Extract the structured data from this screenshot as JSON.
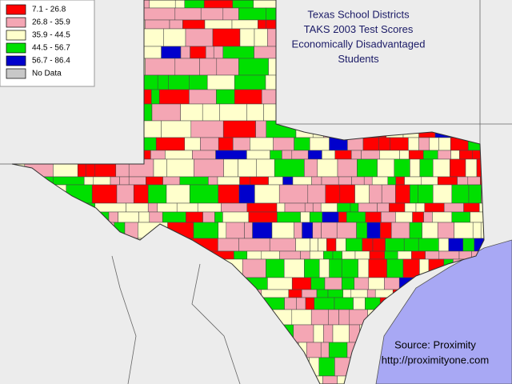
{
  "title": [
    "Texas School Districts",
    "TAKS 2003 Test Scores",
    "Economically Disadvantaged",
    "Students"
  ],
  "legend": [
    {
      "label": "7.1 - 26.8",
      "color": "#ff0000"
    },
    {
      "label": "26.8 - 35.9",
      "color": "#f4a6b4"
    },
    {
      "label": "35.9 - 44.5",
      "color": "#ffffcc"
    },
    {
      "label": "44.5 - 56.7",
      "color": "#00e000"
    },
    {
      "label": "56.7 - 86.4",
      "color": "#0000cc"
    },
    {
      "label": "No Data",
      "color": "#c8c8c8"
    }
  ],
  "source": [
    "Source: Proximity",
    "http://proximityone.com"
  ]
}
